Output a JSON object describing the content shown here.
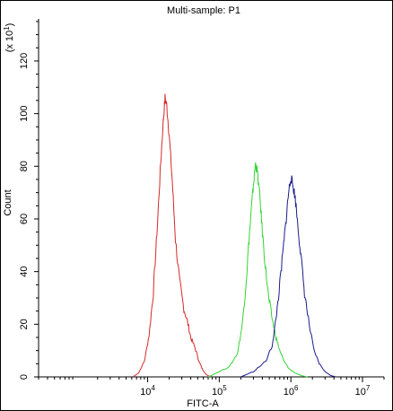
{
  "chart_data": {
    "type": "line",
    "title": "Multi-sample: P1",
    "xlabel": "FITC-A",
    "ylabel": "Count",
    "y_multiplier": "(x 10",
    "y_multiplier_exp": "1",
    "y_multiplier_close": ")",
    "xscale": "log",
    "xlim": [
      300,
      20000000
    ],
    "ylim": [
      0,
      136
    ],
    "xticks": [
      {
        "value": 10000,
        "base": "10",
        "exp": "4"
      },
      {
        "value": 100000,
        "base": "10",
        "exp": "5"
      },
      {
        "value": 1000000,
        "base": "10",
        "exp": "6"
      },
      {
        "value": 10000000,
        "base": "10",
        "exp": "7"
      }
    ],
    "yticks": [
      {
        "value": 0,
        "label": "0"
      },
      {
        "value": 20,
        "label": "20"
      },
      {
        "value": 40,
        "label": "40"
      },
      {
        "value": 60,
        "label": "60"
      },
      {
        "value": 80,
        "label": "80"
      },
      {
        "value": 100,
        "label": "100"
      },
      {
        "value": 120,
        "label": "120"
      }
    ],
    "grid": false,
    "series": [
      {
        "color": "#d42a2a",
        "x": [
          6200,
          7500,
          9000,
          10500,
          12000,
          13500,
          15000,
          16500,
          17500,
          18500,
          20000,
          22000,
          24500,
          28000,
          32000,
          36000,
          40000,
          46000,
          52000,
          58000,
          65000,
          75000
        ],
        "y": [
          0,
          1.5,
          6,
          16,
          32,
          55,
          78,
          97,
          106,
          103,
          92,
          75,
          52,
          36,
          26,
          21,
          15,
          11,
          6,
          3,
          1,
          0
        ]
      },
      {
        "color": "#35d335",
        "x": [
          70000,
          100000,
          140000,
          180000,
          210000,
          240000,
          260000,
          280000,
          300000,
          320000,
          340000,
          370000,
          400000,
          440000,
          490000,
          550000,
          620000,
          700000,
          800000,
          950000,
          1150000,
          1400000,
          1700000
        ],
        "y": [
          0,
          2,
          4,
          9,
          20,
          38,
          52,
          63,
          73,
          81,
          78,
          68,
          55,
          42,
          30,
          22,
          15,
          10,
          6,
          3,
          1.5,
          0.5,
          0
        ]
      },
      {
        "color": "#1c1c8c",
        "x": [
          200000,
          300000,
          450000,
          550000,
          620000,
          700000,
          780000,
          860000,
          930000,
          1000000,
          1080000,
          1150000,
          1250000,
          1380000,
          1550000,
          1800000,
          2100000,
          2500000,
          3000000,
          3600000,
          4300000
        ],
        "y": [
          0,
          2,
          6,
          12,
          22,
          35,
          48,
          60,
          70,
          76,
          72,
          68,
          58,
          46,
          32,
          20,
          10,
          5,
          2,
          0.5,
          0
        ]
      }
    ]
  }
}
